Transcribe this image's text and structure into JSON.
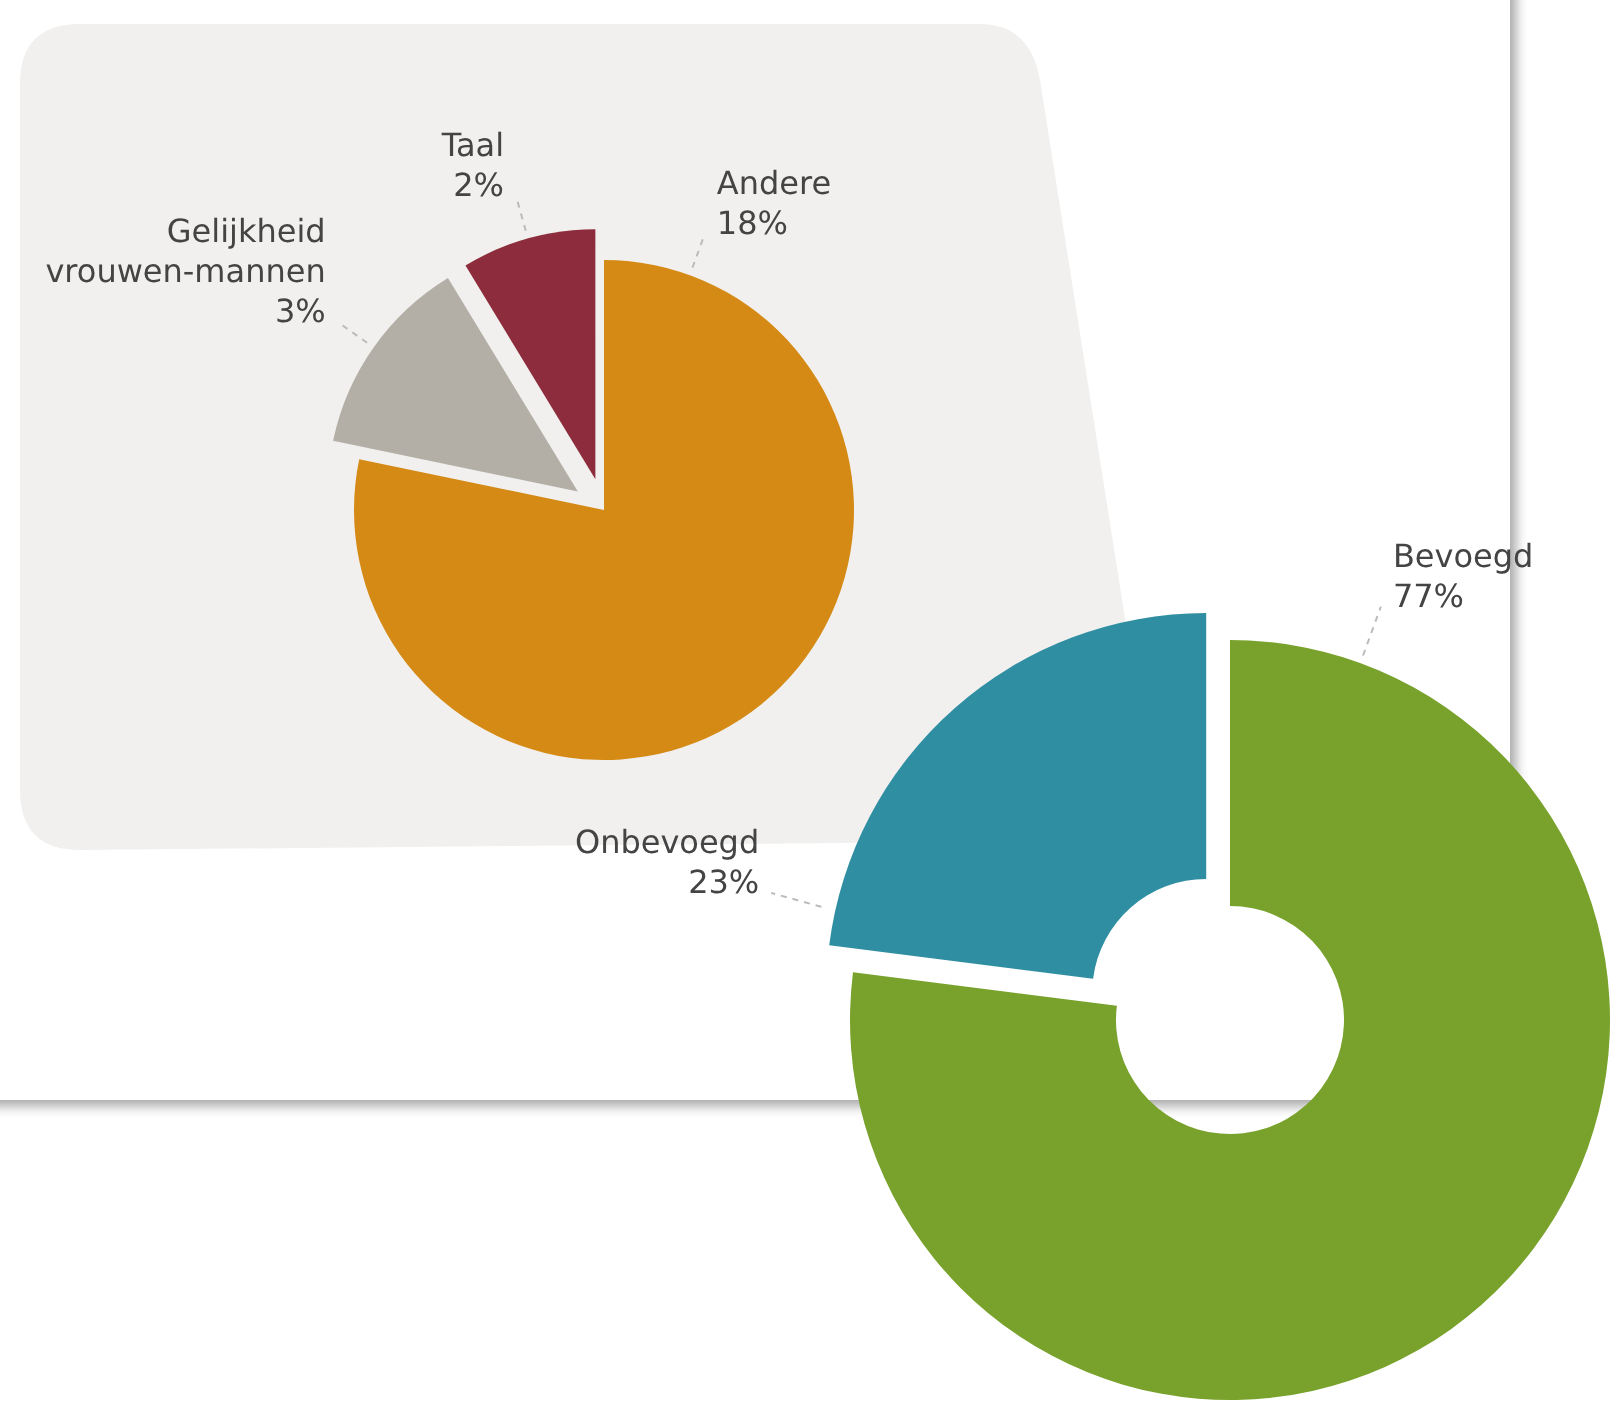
{
  "chart_data": [
    {
      "type": "pie",
      "categories": [
        "Andere",
        "Gelijkheid vrouwen-mannen",
        "Taal"
      ],
      "values": [
        18,
        3,
        2
      ],
      "colors": [
        "#d48a14",
        "#b3afa6",
        "#8c2c3c"
      ],
      "value_labels": [
        "18%",
        "3%",
        "2%"
      ]
    },
    {
      "type": "donut",
      "categories": [
        "Bevoegd",
        "Onbevoegd"
      ],
      "values": [
        77,
        23
      ],
      "colors": [
        "#78a22c",
        "#2f8ea2"
      ],
      "value_labels": [
        "77%",
        "23%"
      ]
    }
  ]
}
